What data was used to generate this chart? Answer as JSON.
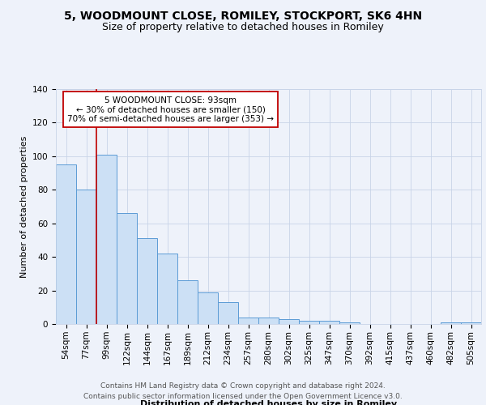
{
  "title_line1": "5, WOODMOUNT CLOSE, ROMILEY, STOCKPORT, SK6 4HN",
  "title_line2": "Size of property relative to detached houses in Romiley",
  "xlabel": "Distribution of detached houses by size in Romiley",
  "ylabel": "Number of detached properties",
  "footer_line1": "Contains HM Land Registry data © Crown copyright and database right 2024.",
  "footer_line2": "Contains public sector information licensed under the Open Government Licence v3.0.",
  "categories": [
    "54sqm",
    "77sqm",
    "99sqm",
    "122sqm",
    "144sqm",
    "167sqm",
    "189sqm",
    "212sqm",
    "234sqm",
    "257sqm",
    "280sqm",
    "302sqm",
    "325sqm",
    "347sqm",
    "370sqm",
    "392sqm",
    "415sqm",
    "437sqm",
    "460sqm",
    "482sqm",
    "505sqm"
  ],
  "values": [
    95,
    80,
    101,
    66,
    51,
    42,
    26,
    19,
    13,
    4,
    4,
    3,
    2,
    2,
    1,
    0,
    0,
    0,
    0,
    1,
    1
  ],
  "bar_color": "#cce0f5",
  "bar_edge_color": "#5b9bd5",
  "vline_pos": 1.5,
  "vline_color": "#c00000",
  "annotation_text": "5 WOODMOUNT CLOSE: 93sqm\n← 30% of detached houses are smaller (150)\n70% of semi-detached houses are larger (353) →",
  "annotation_box_color": "white",
  "annotation_box_edge": "#c00000",
  "ylim": [
    0,
    140
  ],
  "yticks": [
    0,
    20,
    40,
    60,
    80,
    100,
    120,
    140
  ],
  "grid_color": "#c8d4e8",
  "bg_color": "#eef2fa",
  "plot_bg_color": "#eef2fa",
  "title_fontsize": 10,
  "subtitle_fontsize": 9,
  "axis_label_fontsize": 8,
  "tick_fontsize": 7.5,
  "footer_fontsize": 6.5,
  "annot_fontsize": 7.5
}
